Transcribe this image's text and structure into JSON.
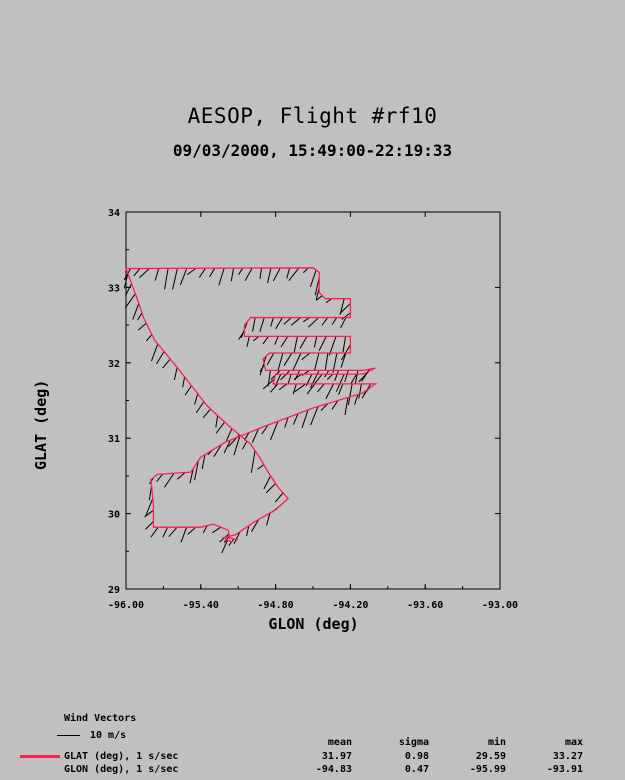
{
  "title": "AESOP, Flight #rf10",
  "subtitle": "09/03/2000, 15:49:00-22:19:33",
  "chart_data": {
    "type": "line",
    "xlabel": "GLON (deg)",
    "ylabel": "GLAT (deg)",
    "xlim": [
      -96.0,
      -93.0
    ],
    "ylim": [
      29,
      34
    ],
    "xticks": [
      "-96.00",
      "-95.40",
      "-94.80",
      "-94.20",
      "-93.60",
      "-93.00"
    ],
    "yticks": [
      "29",
      "30",
      "31",
      "32",
      "33",
      "34"
    ],
    "line_color": "#ff1e50",
    "flight_track": [
      [
        -95.15,
        29.62
      ],
      [
        -95.22,
        29.68
      ],
      [
        -95.12,
        29.72
      ],
      [
        -94.98,
        29.88
      ],
      [
        -94.8,
        30.05
      ],
      [
        -94.7,
        30.2
      ],
      [
        -94.78,
        30.35
      ],
      [
        -94.86,
        30.55
      ],
      [
        -94.93,
        30.75
      ],
      [
        -95.0,
        30.92
      ],
      [
        -95.18,
        31.17
      ],
      [
        -95.35,
        31.43
      ],
      [
        -95.5,
        31.75
      ],
      [
        -95.62,
        32.0
      ],
      [
        -95.77,
        32.3
      ],
      [
        -95.86,
        32.6
      ],
      [
        -95.91,
        32.85
      ],
      [
        -96.0,
        33.25
      ],
      [
        -94.5,
        33.26
      ],
      [
        -94.45,
        33.2
      ],
      [
        -94.45,
        32.93
      ],
      [
        -94.4,
        32.85
      ],
      [
        -94.2,
        32.85
      ],
      [
        -94.2,
        32.6
      ],
      [
        -95.0,
        32.6
      ],
      [
        -95.05,
        32.5
      ],
      [
        -95.05,
        32.35
      ],
      [
        -94.2,
        32.35
      ],
      [
        -94.2,
        32.13
      ],
      [
        -94.85,
        32.13
      ],
      [
        -94.9,
        32.05
      ],
      [
        -94.88,
        31.9
      ],
      [
        -94.1,
        31.9
      ],
      [
        -94.0,
        31.93
      ],
      [
        -94.1,
        31.85
      ],
      [
        -94.3,
        31.85
      ],
      [
        -94.8,
        31.85
      ],
      [
        -94.82,
        31.72
      ],
      [
        -94.0,
        31.72
      ],
      [
        -94.1,
        31.6
      ],
      [
        -94.5,
        31.4
      ],
      [
        -94.9,
        31.15
      ],
      [
        -95.2,
        30.95
      ],
      [
        -95.4,
        30.75
      ],
      [
        -95.48,
        30.55
      ],
      [
        -95.75,
        30.52
      ],
      [
        -95.8,
        30.45
      ],
      [
        -95.78,
        30.12
      ],
      [
        -95.78,
        29.82
      ],
      [
        -95.4,
        29.82
      ],
      [
        -95.3,
        29.86
      ],
      [
        -95.18,
        29.78
      ],
      [
        -95.17,
        29.68
      ],
      [
        -95.1,
        29.65
      ]
    ],
    "series": [
      {
        "name": "GLAT (deg), 1 s/sec",
        "mean": "31.97",
        "sigma": "0.98",
        "min": "29.59",
        "max": "33.27"
      },
      {
        "name": "GLON (deg), 1 s/sec",
        "mean": "-94.83",
        "sigma": "0.47",
        "min": "-95.99",
        "max": "-93.91"
      }
    ]
  },
  "legend": {
    "wind_title": "Wind Vectors",
    "wind_scale": "10 m/s",
    "headers": [
      "mean",
      "sigma",
      "min",
      "max"
    ]
  }
}
